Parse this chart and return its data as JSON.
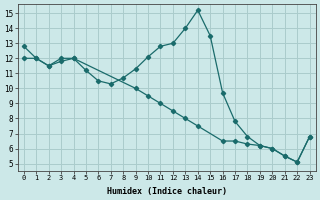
{
  "xlabel": "Humidex (Indice chaleur)",
  "background_color": "#cce8e8",
  "grid_color": "#aacccc",
  "line_color": "#1a6b6b",
  "xlim": [
    -0.5,
    23.5
  ],
  "ylim": [
    4.5,
    15.6
  ],
  "xticks": [
    0,
    1,
    2,
    3,
    4,
    5,
    6,
    7,
    8,
    9,
    10,
    11,
    12,
    13,
    14,
    15,
    16,
    17,
    18,
    19,
    20,
    21,
    22,
    23
  ],
  "yticks": [
    5,
    6,
    7,
    8,
    9,
    10,
    11,
    12,
    13,
    14,
    15
  ],
  "line1_x": [
    0,
    1,
    2,
    3,
    4,
    5,
    6,
    7,
    8,
    9,
    10,
    11,
    12,
    13,
    14,
    15,
    16,
    17,
    18,
    19,
    20,
    21,
    22,
    23
  ],
  "line1_y": [
    12.8,
    12.0,
    11.5,
    11.8,
    12.0,
    11.2,
    10.5,
    10.3,
    10.7,
    11.3,
    12.1,
    12.8,
    13.0,
    14.0,
    15.2,
    13.5,
    9.7,
    7.8,
    6.8,
    6.2,
    6.0,
    5.5,
    5.1,
    6.8
  ],
  "line2_x": [
    0,
    1,
    2,
    3,
    4,
    9,
    10,
    11,
    12,
    13,
    14,
    16,
    17,
    18,
    19,
    20,
    21,
    22,
    23
  ],
  "line2_y": [
    12.0,
    12.0,
    11.5,
    12.0,
    12.0,
    10.0,
    9.5,
    9.0,
    8.5,
    8.0,
    7.5,
    6.5,
    6.5,
    6.3,
    6.2,
    6.0,
    5.5,
    5.1,
    6.8
  ]
}
